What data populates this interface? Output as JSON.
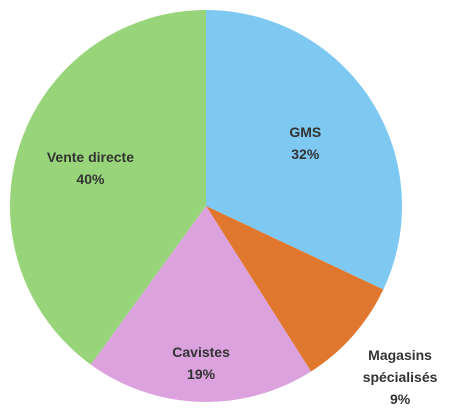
{
  "chart_data": {
    "type": "pie",
    "categories": [
      "GMS",
      "Magasins spécialisés",
      "Cavistes",
      "Vente directe"
    ],
    "values": [
      32,
      9,
      19,
      40
    ],
    "value_labels": [
      "32%",
      "9%",
      "19%",
      "40%"
    ],
    "colors": [
      "#7ec9f2",
      "#e0772e",
      "#dba2de",
      "#98d57a"
    ]
  }
}
